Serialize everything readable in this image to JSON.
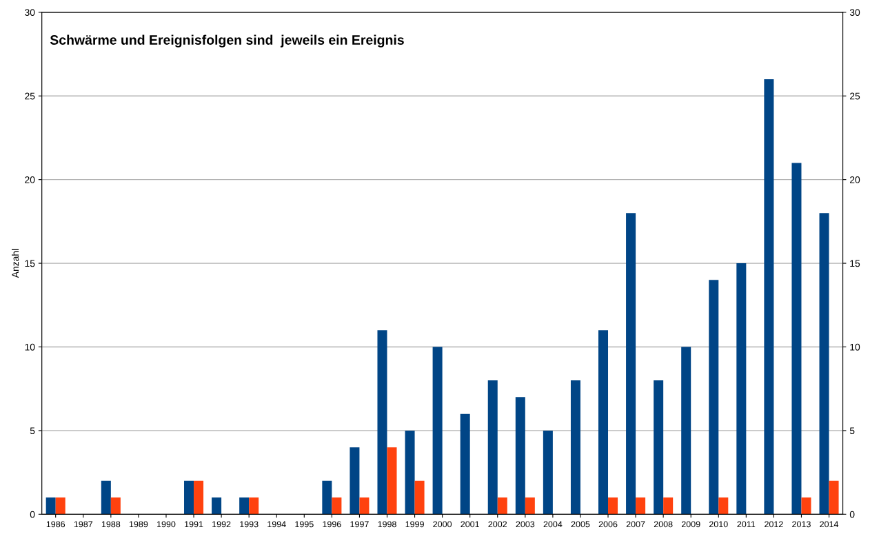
{
  "chart_data": {
    "type": "bar",
    "title": "Schwärme und Ereignisfolgen sind  jeweils ein Ereignis",
    "ylabel": "Anzahl",
    "categories": [
      "1986",
      "1987",
      "1988",
      "1989",
      "1990",
      "1991",
      "1992",
      "1993",
      "1994",
      "1995",
      "1996",
      "1997",
      "1998",
      "1999",
      "2000",
      "2001",
      "2002",
      "2003",
      "2004",
      "2005",
      "2006",
      "2007",
      "2008",
      "2009",
      "2010",
      "2011",
      "2012",
      "2013",
      "2014"
    ],
    "series": [
      {
        "color": "#004586",
        "values": [
          1,
          0,
          2,
          0,
          0,
          2,
          1,
          1,
          0,
          0,
          2,
          4,
          11,
          5,
          10,
          6,
          8,
          7,
          5,
          8,
          11,
          18,
          8,
          10,
          14,
          15,
          26,
          21,
          18
        ]
      },
      {
        "color": "#ff420e",
        "values": [
          1,
          0,
          1,
          0,
          0,
          2,
          0,
          1,
          0,
          0,
          1,
          1,
          4,
          2,
          0,
          0,
          1,
          1,
          0,
          0,
          1,
          1,
          1,
          0,
          1,
          0,
          0,
          1,
          2
        ]
      }
    ],
    "ylim": [
      0,
      30
    ],
    "yticks": [
      0,
      5,
      10,
      15,
      20,
      25,
      30
    ],
    "y2lim": [
      0,
      30
    ],
    "y2ticks": [
      0,
      5,
      10,
      15,
      20,
      25,
      30
    ],
    "grid": "y"
  }
}
